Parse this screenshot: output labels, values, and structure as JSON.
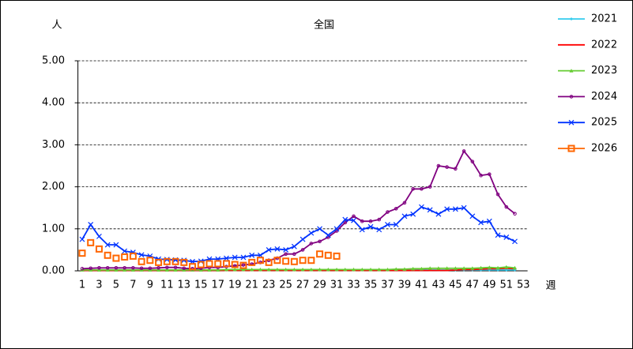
{
  "chart_data": {
    "type": "line",
    "title": "全国",
    "y_label": "人",
    "x_label": "週",
    "categories": [
      1,
      null,
      3,
      null,
      5,
      null,
      7,
      null,
      9,
      null,
      11,
      null,
      13,
      null,
      15,
      null,
      17,
      null,
      19,
      null,
      21,
      null,
      23,
      null,
      25,
      null,
      27,
      null,
      29,
      null,
      31,
      null,
      33,
      null,
      35,
      null,
      37,
      null,
      39,
      null,
      41,
      null,
      43,
      null,
      45,
      null,
      47,
      null,
      49,
      null,
      51,
      null,
      53
    ],
    "ylim": [
      0,
      5
    ],
    "yticks": [
      {
        "value": 0,
        "label": "0.00"
      },
      {
        "value": 1,
        "label": "1.00"
      },
      {
        "value": 2,
        "label": "2.00"
      },
      {
        "value": 3,
        "label": "3.00"
      },
      {
        "value": 4,
        "label": "4.00"
      },
      {
        "value": 5,
        "label": "5.00"
      }
    ],
    "grid": true,
    "legend": "right",
    "series": [
      {
        "name": "2021",
        "color": "#33ccee",
        "marker": "diamond",
        "values": [
          0.02,
          0.02,
          0.02,
          0.02,
          0.02,
          0.02,
          0.02,
          0.02,
          0.02,
          0.02,
          0.02,
          0.02,
          0.02,
          0.02,
          0.02,
          0.02,
          0.02,
          0.02,
          0.02,
          0.02,
          0.02,
          0.02,
          0.02,
          0.02,
          0.02,
          0.02,
          0.02,
          0.02,
          0.02,
          0.02,
          0.02,
          0.02,
          0.02,
          0.02,
          0.02,
          0.02,
          0.02,
          0.02,
          0.02,
          0.02,
          0.02,
          0.02,
          0.02,
          0.02,
          0.02,
          0.02,
          0.02,
          0.02,
          0.02,
          0.02,
          0.02,
          0.02,
          null
        ]
      },
      {
        "name": "2022",
        "color": "#ff0000",
        "marker": "dash",
        "values": [
          0.01,
          0.01,
          0.01,
          0.01,
          0.01,
          0.01,
          0.01,
          0.01,
          0.01,
          0.01,
          0.01,
          0.01,
          0.01,
          0.01,
          0.01,
          0.01,
          0.01,
          0.01,
          0.01,
          0.01,
          0.01,
          0.01,
          0.01,
          0.01,
          0.01,
          0.01,
          0.01,
          0.01,
          0.01,
          0.01,
          0.01,
          0.01,
          0.01,
          0.01,
          0.01,
          0.01,
          0.01,
          0.01,
          0.01,
          0.01,
          0.01,
          0.01,
          0.01,
          0.01,
          0.02,
          0.03,
          0.03,
          0.04,
          0.05,
          0.05,
          0.06,
          0.05,
          null
        ]
      },
      {
        "name": "2023",
        "color": "#66cc33",
        "marker": "triangle",
        "values": [
          0.02,
          0.02,
          0.02,
          0.02,
          0.02,
          0.02,
          0.02,
          0.02,
          0.02,
          0.02,
          0.02,
          0.02,
          0.02,
          0.02,
          0.02,
          0.02,
          0.02,
          0.03,
          0.03,
          0.03,
          0.03,
          0.03,
          0.03,
          0.03,
          0.03,
          0.03,
          0.03,
          0.03,
          0.03,
          0.03,
          0.03,
          0.03,
          0.03,
          0.03,
          0.03,
          0.03,
          0.03,
          0.04,
          0.04,
          0.05,
          0.05,
          0.06,
          0.06,
          0.06,
          0.06,
          0.06,
          0.06,
          0.07,
          0.08,
          0.07,
          0.09,
          0.07,
          null
        ]
      },
      {
        "name": "2024",
        "color": "#800080",
        "marker": "circle",
        "values": [
          0.05,
          0.06,
          0.07,
          0.07,
          0.07,
          0.07,
          0.07,
          0.06,
          0.06,
          0.07,
          0.08,
          0.08,
          0.06,
          0.05,
          0.06,
          0.08,
          0.08,
          0.1,
          0.12,
          0.14,
          0.16,
          0.2,
          0.25,
          0.3,
          0.4,
          0.4,
          0.5,
          0.65,
          0.7,
          0.8,
          0.95,
          1.15,
          1.3,
          1.18,
          1.18,
          1.22,
          1.4,
          1.48,
          1.62,
          1.95,
          1.95,
          2.0,
          2.5,
          2.47,
          2.43,
          2.85,
          2.6,
          2.27,
          2.3,
          1.82,
          1.52,
          1.36,
          null
        ]
      },
      {
        "name": "2025",
        "color": "#0033ff",
        "marker": "cross",
        "values": [
          0.75,
          1.1,
          0.82,
          0.62,
          0.62,
          0.47,
          0.44,
          0.38,
          0.35,
          0.28,
          0.27,
          0.26,
          0.25,
          0.22,
          0.23,
          0.28,
          0.28,
          0.3,
          0.32,
          0.32,
          0.37,
          0.37,
          0.5,
          0.52,
          0.5,
          0.58,
          0.75,
          0.9,
          1.0,
          0.85,
          1.0,
          1.22,
          1.2,
          0.98,
          1.05,
          0.98,
          1.1,
          1.1,
          1.3,
          1.35,
          1.52,
          1.45,
          1.35,
          1.47,
          1.47,
          1.5,
          1.3,
          1.15,
          1.18,
          0.85,
          0.8,
          0.7,
          null
        ]
      },
      {
        "name": "2026",
        "color": "#ff6600",
        "marker": "square",
        "values": [
          0.42,
          0.67,
          0.52,
          0.37,
          0.3,
          0.33,
          0.35,
          0.22,
          0.25,
          0.2,
          0.22,
          0.22,
          0.2,
          0.1,
          0.15,
          0.17,
          0.17,
          0.17,
          0.15,
          0.13,
          0.2,
          0.25,
          0.2,
          0.25,
          0.23,
          0.22,
          0.25,
          0.25,
          0.4,
          0.37,
          0.35,
          null,
          null,
          null,
          null,
          null,
          null,
          null,
          null,
          null,
          null,
          null,
          null,
          null,
          null,
          null,
          null,
          null,
          null,
          null,
          null,
          null,
          null
        ]
      }
    ]
  }
}
